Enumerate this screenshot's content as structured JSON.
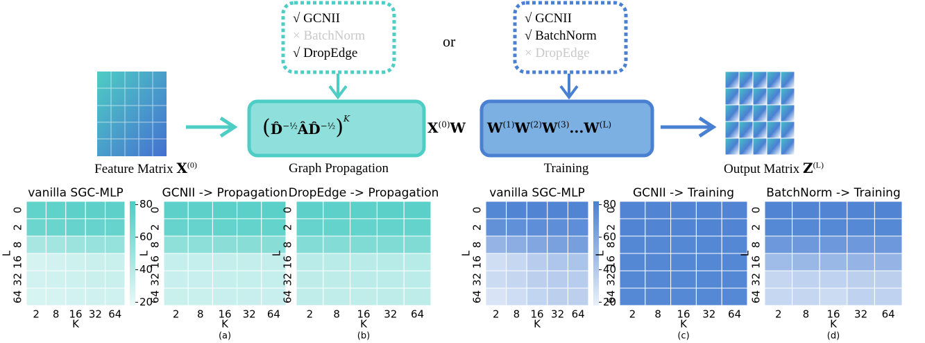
{
  "diagram": {
    "input": {
      "label": "Feature Matrix",
      "symbol": "X",
      "sup": "(0)"
    },
    "propagation_options": [
      {
        "text": "√ GCNII",
        "enabled": true
      },
      {
        "text": "× BatchNorm",
        "enabled": false
      },
      {
        "text": "√ DropEdge",
        "enabled": true
      }
    ],
    "or": "or",
    "training_options": [
      {
        "text": "√ GCNII",
        "enabled": true
      },
      {
        "text": "√ BatchNorm",
        "enabled": true
      },
      {
        "text": "× DropEdge",
        "enabled": false
      }
    ],
    "propagation": {
      "label": "Graph Propagation",
      "open": "(",
      "close": ")",
      "terms": [
        {
          "base": "D̂",
          "sup": "−½"
        },
        {
          "base": "ÂD̂",
          "sup": "−½"
        }
      ],
      "power": "K"
    },
    "between": {
      "symbol": "X",
      "sup": "(0)",
      "tail": "W"
    },
    "training": {
      "label": "Training",
      "terms": [
        {
          "base": "W",
          "sup": "(1)"
        },
        {
          "base": "W",
          "sup": "(2)"
        },
        {
          "base": "W",
          "sup": "(3)"
        },
        {
          "base": "...W",
          "sup": "(L)"
        }
      ]
    },
    "output": {
      "label": "Output Matrix",
      "symbol": "Z",
      "sup": "(L)"
    }
  },
  "chart_data": [
    {
      "type": "heatmap",
      "title": "vanilla SGC-MLP",
      "x_label": "K",
      "y_label": "L",
      "color": "#4ecdc4",
      "x": [
        2,
        8,
        16,
        32,
        64
      ],
      "y": [
        0,
        2,
        8,
        16,
        32,
        64
      ],
      "clim": [
        18,
        82
      ],
      "colorbar": true,
      "cticks": [
        20,
        40,
        60,
        80
      ],
      "values": [
        [
          74,
          75,
          76,
          76,
          76
        ],
        [
          70,
          71,
          72,
          72,
          72
        ],
        [
          45,
          47,
          50,
          52,
          53
        ],
        [
          27,
          28,
          30,
          31,
          31
        ],
        [
          28,
          29,
          30,
          31,
          31
        ],
        [
          26,
          27,
          28,
          29,
          29
        ]
      ]
    },
    {
      "type": "heatmap",
      "title": "GCNII -> Propagation",
      "x_label": "K",
      "y_label": "L",
      "color": "#4ecdc4",
      "caption": "(a)",
      "x": [
        2,
        8,
        16,
        32,
        64
      ],
      "y": [
        0,
        2,
        8,
        16,
        32,
        64
      ],
      "clim": [
        18,
        82
      ],
      "colorbar": false,
      "values": [
        [
          76,
          76,
          77,
          77,
          77
        ],
        [
          72,
          72,
          73,
          73,
          73
        ],
        [
          55,
          56,
          57,
          58,
          58
        ],
        [
          33,
          33,
          34,
          34,
          34
        ],
        [
          32,
          32,
          33,
          33,
          33
        ],
        [
          31,
          31,
          32,
          32,
          32
        ]
      ]
    },
    {
      "type": "heatmap",
      "title": "DropEdge -> Propagation",
      "x_label": "K",
      "y_label": "L",
      "color": "#4ecdc4",
      "caption": "(b)",
      "x": [
        2,
        8,
        16,
        32,
        64
      ],
      "y": [
        0,
        2,
        8,
        16,
        32,
        64
      ],
      "clim": [
        18,
        82
      ],
      "colorbar": false,
      "values": [
        [
          76,
          76,
          76,
          77,
          77
        ],
        [
          72,
          73,
          73,
          73,
          73
        ],
        [
          60,
          60,
          61,
          61,
          61
        ],
        [
          38,
          38,
          38,
          39,
          39
        ],
        [
          36,
          36,
          37,
          37,
          37
        ],
        [
          35,
          35,
          35,
          36,
          36
        ]
      ]
    },
    {
      "type": "heatmap",
      "title": "vanilla SGC-MLP",
      "x_label": "K",
      "y_label": "L",
      "color": "#4a80d2",
      "x": [
        2,
        8,
        16,
        32,
        64
      ],
      "y": [
        0,
        2,
        8,
        16,
        32,
        64
      ],
      "clim": [
        18,
        82
      ],
      "colorbar": true,
      "cticks": [
        20,
        40,
        60,
        80
      ],
      "values": [
        [
          78,
          79,
          79,
          79,
          79
        ],
        [
          72,
          73,
          74,
          74,
          74
        ],
        [
          52,
          56,
          60,
          63,
          64
        ],
        [
          28,
          32,
          38,
          42,
          43
        ],
        [
          30,
          33,
          36,
          38,
          38
        ],
        [
          25,
          29,
          34,
          36,
          36
        ]
      ]
    },
    {
      "type": "heatmap",
      "title": "GCNII -> Training",
      "x_label": "K",
      "y_label": "L",
      "color": "#4a80d2",
      "caption": "(c)",
      "x": [
        2,
        8,
        16,
        32,
        64
      ],
      "y": [
        0,
        2,
        8,
        16,
        32,
        64
      ],
      "clim": [
        18,
        82
      ],
      "colorbar": false,
      "values": [
        [
          79,
          79,
          79,
          79,
          79
        ],
        [
          79,
          79,
          79,
          79,
          79
        ],
        [
          78,
          78,
          78,
          78,
          78
        ],
        [
          78,
          78,
          78,
          78,
          78
        ],
        [
          78,
          78,
          78,
          78,
          78
        ],
        [
          77,
          77,
          77,
          77,
          77
        ]
      ]
    },
    {
      "type": "heatmap",
      "title": "BatchNorm -> Training",
      "x_label": "K",
      "y_label": "L",
      "color": "#4a80d2",
      "caption": "(d)",
      "x": [
        2,
        8,
        16,
        32,
        64
      ],
      "y": [
        0,
        2,
        8,
        16,
        32,
        64
      ],
      "clim": [
        18,
        82
      ],
      "colorbar": false,
      "values": [
        [
          79,
          79,
          79,
          79,
          79
        ],
        [
          77,
          77,
          77,
          77,
          77
        ],
        [
          68,
          68,
          68,
          68,
          68
        ],
        [
          48,
          50,
          50,
          52,
          52
        ],
        [
          33,
          35,
          35,
          36,
          36
        ],
        [
          32,
          33,
          30,
          35,
          35
        ]
      ]
    }
  ]
}
